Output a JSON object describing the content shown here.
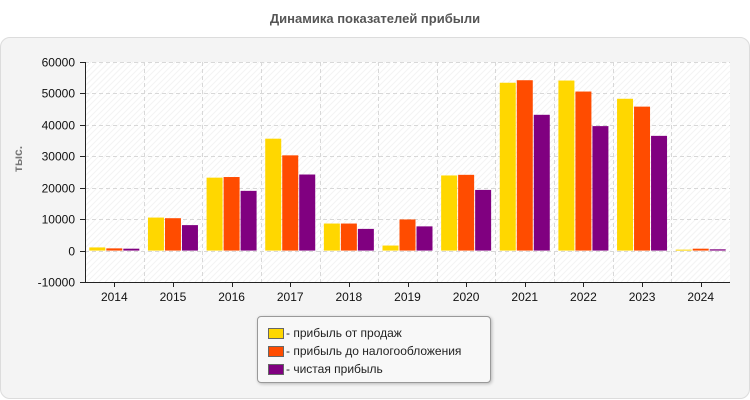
{
  "chart_data": {
    "type": "bar",
    "title": "Динамика показателей прибыли",
    "ylabel": "тыс.",
    "xlabel": "",
    "categories": [
      "2014",
      "2015",
      "2016",
      "2017",
      "2018",
      "2019",
      "2020",
      "2021",
      "2022",
      "2023",
      "2024"
    ],
    "ylim": [
      -10000,
      60000
    ],
    "yticks": [
      60000,
      50000,
      40000,
      30000,
      20000,
      10000,
      0,
      -10000
    ],
    "grid": true,
    "legend_position": "bottom",
    "series": [
      {
        "name": "- прибыль от продаж",
        "color": "#ffd700",
        "values": [
          1000,
          10500,
          23200,
          35600,
          8600,
          1600,
          23900,
          53400,
          54100,
          48300,
          300
        ]
      },
      {
        "name": "- прибыль до налогообложения",
        "color": "#ff4c00",
        "values": [
          700,
          10300,
          23400,
          30300,
          8600,
          9900,
          24100,
          54200,
          50600,
          45800,
          600
        ]
      },
      {
        "name": "- чистая прибыль",
        "color": "#800080",
        "values": [
          600,
          8100,
          19000,
          24200,
          6900,
          7700,
          19300,
          43200,
          39600,
          36500,
          400
        ]
      }
    ]
  }
}
